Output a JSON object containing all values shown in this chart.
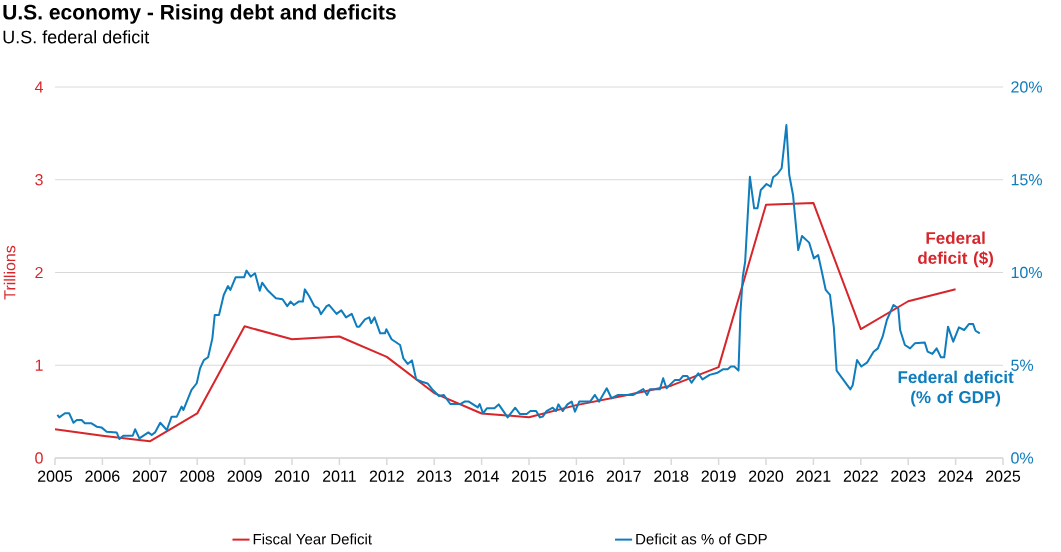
{
  "chart_data": {
    "type": "line",
    "title": "U.S. economy - Rising debt and deficits",
    "subtitle": "U.S. federal deficit",
    "ylabel": "Trillions",
    "xlim": [
      2005,
      2025
    ],
    "xticks": [
      2005,
      2006,
      2007,
      2008,
      2009,
      2010,
      2011,
      2012,
      2013,
      2014,
      2015,
      2016,
      2017,
      2018,
      2019,
      2020,
      2021,
      2022,
      2023,
      2024,
      2025
    ],
    "ylim": [
      0,
      4
    ],
    "yticks": [
      0,
      1,
      2,
      3,
      4
    ],
    "y2lim": [
      0,
      20
    ],
    "y2ticks": [
      {
        "value": 0,
        "label": "0%"
      },
      {
        "value": 5,
        "label": "5%"
      },
      {
        "value": 10,
        "label": "10%"
      },
      {
        "value": 15,
        "label": "15%"
      },
      {
        "value": 20,
        "label": "20%"
      }
    ],
    "grid": "y",
    "legend": "bottom",
    "annotations": [
      "Federal deficit ($)",
      "Federal deficit (% of GDP)"
    ],
    "series": [
      {
        "name": "Fiscal Year Deficit",
        "color": "#d7262b",
        "axis": "y",
        "x": [
          2005,
          2006,
          2007,
          2008,
          2009,
          2010,
          2011,
          2012,
          2013,
          2014,
          2015,
          2016,
          2017,
          2018,
          2019,
          2020,
          2021,
          2022,
          2023,
          2024
        ],
        "values": [
          0.31,
          0.24,
          0.18,
          0.48,
          1.42,
          1.28,
          1.31,
          1.09,
          0.7,
          0.48,
          0.44,
          0.57,
          0.67,
          0.78,
          0.98,
          2.73,
          2.75,
          1.39,
          1.69,
          1.82
        ]
      },
      {
        "name": "Deficit as % of GDP",
        "color": "#0f7dbd",
        "axis": "y2",
        "x": [
          2005.05,
          2005.09,
          2005.21,
          2005.3,
          2005.39,
          2005.46,
          2005.56,
          2005.63,
          2005.77,
          2005.88,
          2005.98,
          2006.09,
          2006.3,
          2006.36,
          2006.44,
          2006.64,
          2006.69,
          2006.78,
          2006.97,
          2007.04,
          2007.11,
          2007.22,
          2007.36,
          2007.46,
          2007.57,
          2007.67,
          2007.71,
          2007.88,
          2007.99,
          2008.06,
          2008.14,
          2008.23,
          2008.32,
          2008.37,
          2008.46,
          2008.56,
          2008.65,
          2008.7,
          2008.81,
          2008.99,
          2009.04,
          2009.13,
          2009.22,
          2009.32,
          2009.37,
          2009.48,
          2009.66,
          2009.8,
          2009.9,
          2009.97,
          2010.04,
          2010.14,
          2010.23,
          2010.27,
          2010.36,
          2010.47,
          2010.56,
          2010.61,
          2010.73,
          2010.78,
          2010.94,
          2011.04,
          2011.14,
          2011.26,
          2011.37,
          2011.42,
          2011.54,
          2011.63,
          2011.67,
          2011.74,
          2011.86,
          2011.96,
          2011.99,
          2012.1,
          2012.28,
          2012.35,
          2012.44,
          2012.53,
          2012.62,
          2012.74,
          2012.86,
          2012.96,
          2013.1,
          2013.2,
          2013.34,
          2013.55,
          2013.64,
          2013.73,
          2013.92,
          2013.96,
          2014.03,
          2014.11,
          2014.27,
          2014.36,
          2014.55,
          2014.71,
          2014.81,
          2014.95,
          2015.03,
          2015.15,
          2015.23,
          2015.29,
          2015.37,
          2015.5,
          2015.57,
          2015.62,
          2015.71,
          2015.81,
          2015.9,
          2015.97,
          2016.06,
          2016.29,
          2016.39,
          2016.48,
          2016.64,
          2016.74,
          2016.88,
          2017.2,
          2017.41,
          2017.49,
          2017.55,
          2017.76,
          2017.83,
          2017.9,
          2018.08,
          2018.18,
          2018.25,
          2018.34,
          2018.43,
          2018.57,
          2018.66,
          2018.81,
          2018.98,
          2019.09,
          2019.19,
          2019.26,
          2019.33,
          2019.42,
          2019.46,
          2019.51,
          2019.56,
          2019.66,
          2019.75,
          2019.82,
          2019.89,
          2020.01,
          2020.1,
          2020.15,
          2020.24,
          2020.33,
          2020.43,
          2020.49,
          2020.57,
          2020.68,
          2020.76,
          2020.91,
          2021.01,
          2021.1,
          2021.17,
          2021.26,
          2021.35,
          2021.43,
          2021.49,
          2021.78,
          2021.83,
          2021.92,
          2022.01,
          2022.13,
          2022.27,
          2022.36,
          2022.46,
          2022.55,
          2022.69,
          2022.79,
          2022.83,
          2022.93,
          2023.04,
          2023.14,
          2023.35,
          2023.41,
          2023.51,
          2023.6,
          2023.69,
          2023.76,
          2023.84,
          2023.95,
          2024.07,
          2024.18,
          2024.28,
          2024.37,
          2024.42,
          2024.51
        ],
        "values": [
          2.32,
          2.19,
          2.41,
          2.41,
          1.9,
          2.05,
          2.05,
          1.87,
          1.87,
          1.69,
          1.65,
          1.42,
          1.38,
          1.02,
          1.2,
          1.2,
          1.55,
          1.06,
          1.38,
          1.24,
          1.38,
          1.9,
          1.51,
          2.23,
          2.23,
          2.77,
          2.59,
          3.67,
          4.03,
          4.83,
          5.28,
          5.43,
          6.45,
          7.71,
          7.71,
          8.79,
          9.27,
          9.06,
          9.74,
          9.74,
          10.1,
          9.78,
          9.96,
          9.02,
          9.45,
          9.06,
          8.61,
          8.56,
          8.19,
          8.43,
          8.25,
          8.43,
          8.43,
          9.09,
          8.73,
          8.19,
          8.07,
          7.75,
          8.19,
          8.25,
          7.77,
          7.96,
          7.58,
          7.77,
          7.08,
          7.08,
          7.47,
          7.58,
          7.27,
          7.58,
          6.72,
          6.72,
          6.94,
          6.4,
          6.09,
          5.37,
          5.07,
          5.26,
          4.24,
          4.11,
          4.02,
          3.7,
          3.34,
          3.4,
          2.91,
          2.91,
          3.04,
          3.04,
          2.73,
          2.91,
          2.41,
          2.68,
          2.68,
          2.89,
          2.19,
          2.71,
          2.37,
          2.37,
          2.53,
          2.53,
          2.19,
          2.23,
          2.53,
          2.71,
          2.53,
          2.89,
          2.53,
          2.89,
          3.04,
          2.5,
          3.04,
          3.04,
          3.4,
          3.04,
          3.76,
          3.22,
          3.4,
          3.4,
          3.72,
          3.4,
          3.7,
          3.7,
          4.3,
          3.76,
          4.21,
          4.21,
          4.42,
          4.42,
          4.06,
          4.57,
          4.24,
          4.48,
          4.6,
          4.78,
          4.78,
          4.93,
          4.93,
          4.71,
          7.8,
          9.77,
          10.58,
          15.16,
          13.46,
          13.46,
          14.45,
          14.77,
          14.63,
          15.13,
          15.31,
          15.62,
          17.95,
          15.27,
          14.18,
          11.21,
          11.97,
          11.61,
          10.76,
          10.94,
          10.13,
          9.06,
          8.79,
          7.08,
          4.71,
          3.7,
          3.94,
          5.28,
          4.93,
          5.14,
          5.73,
          5.91,
          6.54,
          7.44,
          8.25,
          8.07,
          6.9,
          6.09,
          5.91,
          6.18,
          6.22,
          5.73,
          5.61,
          5.91,
          5.43,
          5.43,
          7.08,
          6.27,
          7.04,
          6.9,
          7.22,
          7.22,
          6.86,
          6.72
        ]
      }
    ]
  }
}
